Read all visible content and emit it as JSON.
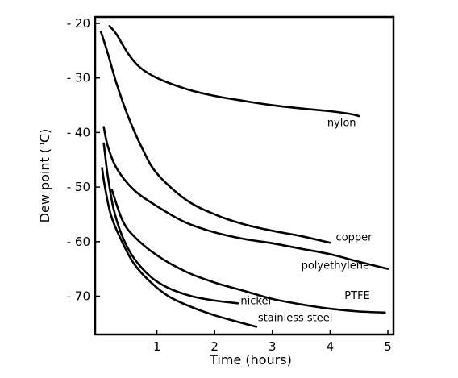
{
  "chart_data": {
    "type": "line",
    "title": "",
    "xlabel": "Time (hours)",
    "ylabel": "Dew point (ºC)",
    "ylabel_main": "Dew point (",
    "ylabel_sup": "o",
    "ylabel_end": "C)",
    "xlim": [
      0,
      5
    ],
    "ylim": [
      -20,
      -77
    ],
    "x_ticks": [
      {
        "value": 1,
        "label": "1"
      },
      {
        "value": 2,
        "label": "2"
      },
      {
        "value": 3,
        "label": "3"
      },
      {
        "value": 4,
        "label": "4"
      },
      {
        "value": 5,
        "label": "5"
      }
    ],
    "y_ticks": [
      {
        "value": -20,
        "label": "- 20"
      },
      {
        "value": -30,
        "label": "- 30"
      },
      {
        "value": -40,
        "label": "- 40"
      },
      {
        "value": -50,
        "label": "- 50"
      },
      {
        "value": -60,
        "label": "- 60"
      },
      {
        "value": -70,
        "label": "- 70"
      }
    ],
    "grid": false,
    "legend": "none (direct labels)",
    "line_color": "#000000",
    "series": [
      {
        "name": "nylon",
        "points": [
          [
            0.18,
            -20.5
          ],
          [
            0.3,
            -22
          ],
          [
            0.5,
            -25.5
          ],
          [
            0.7,
            -28
          ],
          [
            1.0,
            -30
          ],
          [
            1.5,
            -32
          ],
          [
            2.0,
            -33.3
          ],
          [
            2.5,
            -34.2
          ],
          [
            3.0,
            -35
          ],
          [
            3.5,
            -35.6
          ],
          [
            4.0,
            -36.1
          ],
          [
            4.35,
            -36.6
          ],
          [
            4.5,
            -37
          ]
        ]
      },
      {
        "name": "copper",
        "points": [
          [
            0.03,
            -21.5
          ],
          [
            0.15,
            -25.5
          ],
          [
            0.3,
            -31
          ],
          [
            0.5,
            -37
          ],
          [
            0.75,
            -43
          ],
          [
            1.0,
            -47.5
          ],
          [
            1.5,
            -52.3
          ],
          [
            2.0,
            -55
          ],
          [
            2.5,
            -56.8
          ],
          [
            3.0,
            -58
          ],
          [
            3.5,
            -59
          ],
          [
            4.0,
            -60.2
          ]
        ]
      },
      {
        "name": "polyethylene",
        "points": [
          [
            0.08,
            -39
          ],
          [
            0.15,
            -42.5
          ],
          [
            0.3,
            -46.5
          ],
          [
            0.6,
            -50.5
          ],
          [
            1.0,
            -53.5
          ],
          [
            1.5,
            -56.5
          ],
          [
            2.0,
            -58.3
          ],
          [
            2.5,
            -59.5
          ],
          [
            3.0,
            -60.3
          ],
          [
            3.5,
            -61.3
          ],
          [
            4.0,
            -62.3
          ],
          [
            4.5,
            -63.7
          ],
          [
            5.0,
            -65
          ]
        ]
      },
      {
        "name": "PTFE",
        "points": [
          [
            0.22,
            -50.5
          ],
          [
            0.4,
            -56
          ],
          [
            0.6,
            -59
          ],
          [
            1.0,
            -62.5
          ],
          [
            1.5,
            -65.5
          ],
          [
            2.0,
            -67.5
          ],
          [
            2.5,
            -69
          ],
          [
            3.0,
            -70.5
          ],
          [
            3.5,
            -71.5
          ],
          [
            4.0,
            -72.3
          ],
          [
            4.5,
            -72.8
          ],
          [
            4.95,
            -73
          ]
        ]
      },
      {
        "name": "nickel",
        "points": [
          [
            0.08,
            -42
          ],
          [
            0.15,
            -48
          ],
          [
            0.25,
            -54
          ],
          [
            0.4,
            -59
          ],
          [
            0.6,
            -63
          ],
          [
            0.9,
            -66.5
          ],
          [
            1.2,
            -68.5
          ],
          [
            1.6,
            -70
          ],
          [
            2.0,
            -70.8
          ],
          [
            2.4,
            -71.3
          ]
        ]
      },
      {
        "name": "stainless steel",
        "points": [
          [
            0.05,
            -46.5
          ],
          [
            0.1,
            -50
          ],
          [
            0.2,
            -55
          ],
          [
            0.35,
            -59
          ],
          [
            0.6,
            -64
          ],
          [
            0.9,
            -67.5
          ],
          [
            1.2,
            -70
          ],
          [
            1.6,
            -72
          ],
          [
            2.0,
            -73.5
          ],
          [
            2.4,
            -74.7
          ],
          [
            2.72,
            -75.6
          ]
        ]
      }
    ],
    "annotations": [
      {
        "series": "nylon",
        "text": "nylon",
        "x": 3.95,
        "y": -38.8
      },
      {
        "series": "copper",
        "text": "copper",
        "x": 4.1,
        "y": -59.8
      },
      {
        "series": "polyethylene",
        "text": "polyethylene",
        "x": 3.5,
        "y": -65.0
      },
      {
        "series": "PTFE",
        "text": "PTFE",
        "x": 4.25,
        "y": -70.5
      },
      {
        "series": "nickel",
        "text": "nickel",
        "x": 2.45,
        "y": -71.5
      },
      {
        "series": "stainless steel",
        "text": "stainless steel",
        "x": 2.75,
        "y": -74.6
      }
    ]
  }
}
